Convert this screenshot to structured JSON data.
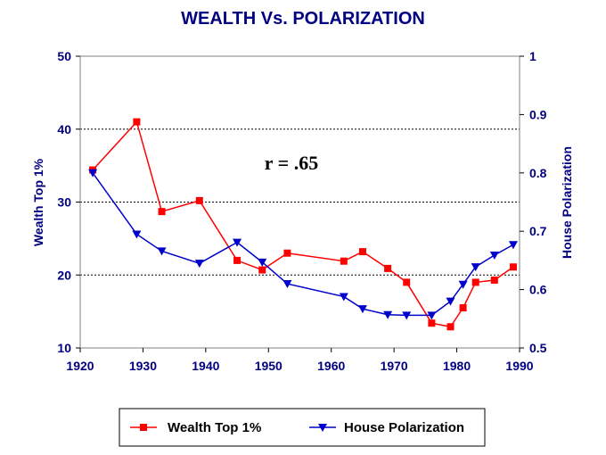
{
  "chart_data": {
    "type": "line",
    "title": "WEALTH Vs. POLARIZATION",
    "annotation": "r = .65",
    "x_ticks": [
      "1920",
      "1930",
      "1940",
      "1950",
      "1960",
      "1970",
      "1980",
      "1990"
    ],
    "xlim": [
      1920,
      1990
    ],
    "y_left": {
      "label": "Wealth Top 1%",
      "ticks": [
        "10",
        "20",
        "30",
        "40",
        "50"
      ],
      "ylim": [
        10,
        50
      ]
    },
    "y_right": {
      "label": "House Polarization",
      "ticks": [
        "0.5",
        "0.6",
        "0.7",
        "0.8",
        "0.9",
        "1"
      ],
      "ylim": [
        0.5,
        1
      ]
    },
    "grid": "horizontal dashed",
    "legend_position": "bottom",
    "series": [
      {
        "name": "Wealth Top 1%",
        "axis": "left",
        "color": "#ff0000",
        "marker": "square",
        "x": [
          1922,
          1929,
          1933,
          1939,
          1945,
          1949,
          1953,
          1962,
          1965,
          1969,
          1972,
          1976,
          1979,
          1981,
          1983,
          1986,
          1989
        ],
        "y": [
          34.4,
          41.0,
          28.7,
          30.2,
          22.0,
          20.7,
          23.0,
          21.9,
          23.2,
          20.9,
          19.0,
          13.4,
          12.9,
          15.5,
          19.0,
          19.3,
          21.1
        ]
      },
      {
        "name": "House Polarization",
        "axis": "right",
        "color": "#0000cc",
        "marker": "triangle-down",
        "x": [
          1922,
          1929,
          1933,
          1939,
          1945,
          1949,
          1953,
          1962,
          1965,
          1969,
          1972,
          1976,
          1979,
          1981,
          1983,
          1986,
          1989
        ],
        "y": [
          0.8,
          0.695,
          0.666,
          0.645,
          0.681,
          0.647,
          0.61,
          0.588,
          0.567,
          0.557,
          0.556,
          0.556,
          0.58,
          0.609,
          0.639,
          0.659,
          0.677
        ]
      }
    ]
  }
}
